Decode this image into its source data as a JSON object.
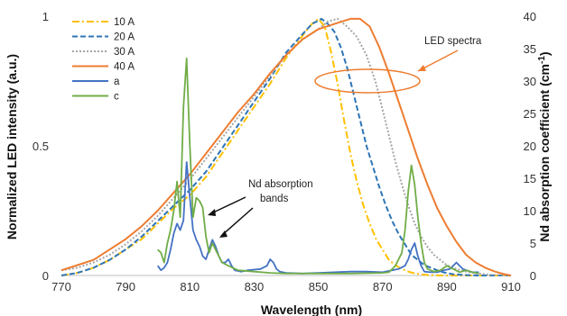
{
  "chart_data": {
    "type": "line",
    "title": "",
    "xlabel": "Wavelength (nm)",
    "ylabel_left": "Normalized LED intensity (a.u.)",
    "ylabel_right_prefix": "Nd absorption coefficient (cm",
    "ylabel_right_sup": "-1",
    "ylabel_right_suffix": ")",
    "xlim": [
      770,
      910
    ],
    "ylim_left": [
      0,
      1
    ],
    "ylim_right": [
      0,
      40
    ],
    "x_ticks": [
      "770",
      "790",
      "810",
      "830",
      "850",
      "870",
      "890",
      "910"
    ],
    "y_ticks_left": [
      "0",
      "0.5",
      "1"
    ],
    "y_ticks_right": [
      "0",
      "5",
      "10",
      "15",
      "20",
      "25",
      "30",
      "35",
      "40"
    ],
    "grid": false,
    "legend_position": "top-left",
    "series": [
      {
        "name": "10 A",
        "axis": "left",
        "color": "#FFC000",
        "dash": "8,3,2,3",
        "x": [
          770,
          775,
          780,
          785,
          790,
          795,
          800,
          805,
          810,
          815,
          820,
          825,
          830,
          835,
          840,
          843,
          846,
          848,
          850,
          852,
          854,
          856,
          858,
          860,
          862,
          864,
          866,
          868,
          870,
          872,
          874,
          876,
          878,
          880,
          882,
          884,
          886,
          888,
          890,
          895,
          900,
          905,
          910
        ],
        "y": [
          0.0,
          0.01,
          0.03,
          0.06,
          0.1,
          0.14,
          0.2,
          0.26,
          0.31,
          0.38,
          0.47,
          0.56,
          0.65,
          0.74,
          0.84,
          0.89,
          0.94,
          0.97,
          0.99,
          0.96,
          0.86,
          0.74,
          0.6,
          0.47,
          0.36,
          0.27,
          0.2,
          0.14,
          0.1,
          0.06,
          0.04,
          0.025,
          0.015,
          0.008,
          0.004,
          0.002,
          0.001,
          0.0,
          0.0,
          0.0,
          0.0,
          0.0,
          0.0
        ]
      },
      {
        "name": "20 A",
        "axis": "left",
        "color": "#2E75B6",
        "dash": "6,3",
        "x": [
          770,
          775,
          780,
          785,
          790,
          795,
          800,
          805,
          810,
          815,
          820,
          825,
          830,
          835,
          840,
          845,
          848,
          851,
          853,
          855,
          857,
          859,
          861,
          863,
          865,
          867,
          869,
          871,
          873,
          875,
          877,
          879,
          881,
          883,
          885,
          887,
          889,
          892,
          895,
          900,
          905,
          910
        ],
        "y": [
          0.0,
          0.01,
          0.03,
          0.06,
          0.1,
          0.15,
          0.21,
          0.27,
          0.33,
          0.4,
          0.49,
          0.58,
          0.67,
          0.76,
          0.86,
          0.93,
          0.97,
          0.99,
          0.97,
          0.94,
          0.88,
          0.8,
          0.7,
          0.6,
          0.5,
          0.42,
          0.34,
          0.27,
          0.21,
          0.16,
          0.12,
          0.08,
          0.06,
          0.04,
          0.03,
          0.02,
          0.012,
          0.005,
          0.002,
          0.0,
          0.0,
          0.0
        ]
      },
      {
        "name": "30 A",
        "axis": "left",
        "color": "#A5A5A5",
        "dash": "2,2",
        "x": [
          770,
          775,
          780,
          785,
          790,
          795,
          800,
          805,
          810,
          815,
          820,
          825,
          830,
          835,
          840,
          845,
          850,
          853,
          856,
          859,
          862,
          865,
          868,
          870,
          872,
          874,
          876,
          878,
          880,
          882,
          884,
          886,
          888,
          890,
          893,
          896,
          900,
          905,
          910
        ],
        "y": [
          0.02,
          0.03,
          0.05,
          0.08,
          0.12,
          0.17,
          0.23,
          0.3,
          0.37,
          0.45,
          0.53,
          0.61,
          0.69,
          0.77,
          0.85,
          0.91,
          0.95,
          0.98,
          0.99,
          0.96,
          0.92,
          0.85,
          0.74,
          0.64,
          0.54,
          0.44,
          0.35,
          0.27,
          0.2,
          0.15,
          0.11,
          0.08,
          0.06,
          0.04,
          0.025,
          0.015,
          0.007,
          0.002,
          0.0
        ]
      },
      {
        "name": "40 A",
        "axis": "left",
        "color": "#ED7D31",
        "dash": "",
        "x": [
          770,
          775,
          780,
          785,
          790,
          795,
          800,
          805,
          810,
          815,
          820,
          825,
          830,
          835,
          840,
          845,
          850,
          855,
          860,
          863,
          866,
          869,
          872,
          875,
          878,
          881,
          884,
          887,
          890,
          893,
          896,
          899,
          902,
          905,
          908,
          910
        ],
        "y": [
          0.02,
          0.04,
          0.06,
          0.1,
          0.14,
          0.19,
          0.25,
          0.32,
          0.39,
          0.47,
          0.55,
          0.63,
          0.7,
          0.78,
          0.85,
          0.91,
          0.95,
          0.97,
          0.99,
          0.99,
          0.96,
          0.88,
          0.78,
          0.67,
          0.56,
          0.45,
          0.35,
          0.26,
          0.19,
          0.13,
          0.08,
          0.05,
          0.03,
          0.015,
          0.005,
          0.0
        ]
      },
      {
        "name": "a",
        "axis": "right",
        "color": "#4472C4",
        "dash": "",
        "x": [
          800,
          801,
          802,
          803,
          804,
          805,
          806,
          807,
          808,
          809,
          810,
          811,
          812,
          813,
          814,
          815,
          816,
          817,
          818,
          819,
          820,
          821,
          822,
          823,
          824,
          826,
          828,
          830,
          832,
          834,
          835,
          836,
          837,
          838,
          840,
          845,
          850,
          855,
          860,
          865,
          870,
          875,
          877,
          878,
          879,
          880,
          881,
          882,
          883,
          885,
          887,
          889,
          891,
          893,
          895,
          898,
          900
        ],
        "y": [
          1.5,
          0.8,
          1.2,
          2.0,
          4.0,
          6.5,
          8.0,
          7.0,
          8.5,
          17.5,
          12.0,
          7.0,
          5.5,
          4.5,
          3.0,
          2.5,
          4.0,
          5.5,
          4.5,
          3.0,
          2.0,
          2.0,
          2.5,
          1.5,
          0.8,
          0.6,
          0.8,
          0.9,
          1.0,
          1.5,
          2.5,
          2.0,
          1.0,
          0.6,
          0.4,
          0.3,
          0.4,
          0.5,
          0.6,
          0.6,
          0.5,
          1.0,
          1.5,
          2.5,
          4.0,
          5.0,
          3.0,
          1.5,
          0.6,
          0.5,
          0.5,
          0.8,
          1.0,
          2.0,
          1.0,
          0.5,
          0.5
        ]
      },
      {
        "name": "c",
        "axis": "right",
        "color": "#70AD47",
        "dash": "",
        "x": [
          800,
          801,
          802,
          803,
          804,
          805,
          806,
          807,
          808,
          809,
          810,
          811,
          812,
          813,
          814,
          815,
          816,
          817,
          818,
          819,
          820,
          822,
          825,
          830,
          835,
          840,
          850,
          860,
          870,
          872,
          874,
          876,
          877,
          878,
          879,
          880,
          881,
          882,
          883,
          884,
          886,
          888,
          890,
          892,
          894,
          896,
          898,
          900
        ],
        "y": [
          4.0,
          3.5,
          2.0,
          5.0,
          7.0,
          10.0,
          14.5,
          9.0,
          26.0,
          33.5,
          20.0,
          9.0,
          12.0,
          11.5,
          10.5,
          6.0,
          3.5,
          5.0,
          4.0,
          3.0,
          2.0,
          1.5,
          0.8,
          0.6,
          0.4,
          0.3,
          0.3,
          0.3,
          0.4,
          0.5,
          1.5,
          3.5,
          7.0,
          13.0,
          17.0,
          14.0,
          9.0,
          5.0,
          2.0,
          1.0,
          0.6,
          0.8,
          1.5,
          1.0,
          0.5,
          0.8,
          0.5,
          0.3
        ]
      }
    ],
    "annotations": {
      "led_spectra": "LED spectra",
      "nd_line1": "Nd absorption",
      "nd_line2": "bands"
    }
  }
}
